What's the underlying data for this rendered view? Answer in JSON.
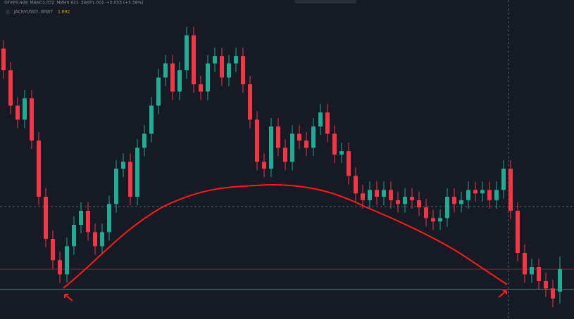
{
  "chart_data": {
    "type": "candlestick",
    "title": "JACKVUSDT, BYBIT",
    "last_price_label": "1.002",
    "ohlc_text": [
      "ОТКР0.949",
      "МАКС1.032",
      "МИН0.921",
      "ЗАКР1.002",
      "+0.053 (+5.58%)"
    ],
    "ylim": [
      0.885,
      1.634
    ],
    "up_color": "#22ab94",
    "down_color": "#f23645",
    "support_level": 0.954,
    "open": [
      1.52,
      1.469,
      1.386,
      1.353,
      1.403,
      1.304,
      1.172,
      1.073,
      1.023,
      0.99,
      1.056,
      1.106,
      1.139,
      1.089,
      1.056,
      1.089,
      1.155,
      1.238,
      1.254,
      1.172,
      1.287,
      1.32,
      1.386,
      1.452,
      1.485,
      1.419,
      1.469,
      1.551,
      1.436,
      1.419,
      1.485,
      1.502,
      1.452,
      1.485,
      1.502,
      1.436,
      1.353,
      1.254,
      1.238,
      1.337,
      1.287,
      1.254,
      1.32,
      1.304,
      1.287,
      1.337,
      1.37,
      1.32,
      1.271,
      1.279,
      1.221,
      1.18,
      1.164,
      1.188,
      1.172,
      1.188,
      1.164,
      1.155,
      1.172,
      1.164,
      1.147,
      1.122,
      1.114,
      1.122,
      1.172,
      1.155,
      1.164,
      1.188,
      1.18,
      1.188,
      1.164,
      1.188,
      1.238,
      1.139,
      1.04,
      0.99,
      1.007,
      0.974,
      0.957,
      0.949
    ],
    "high": [
      1.54,
      1.489,
      1.406,
      1.423,
      1.423,
      1.324,
      1.192,
      1.093,
      1.043,
      1.076,
      1.126,
      1.159,
      1.159,
      1.109,
      1.109,
      1.175,
      1.258,
      1.274,
      1.274,
      1.307,
      1.34,
      1.406,
      1.472,
      1.505,
      1.505,
      1.489,
      1.571,
      1.571,
      1.456,
      1.505,
      1.522,
      1.522,
      1.505,
      1.522,
      1.522,
      1.456,
      1.373,
      1.274,
      1.357,
      1.357,
      1.307,
      1.34,
      1.34,
      1.324,
      1.357,
      1.39,
      1.39,
      1.34,
      1.299,
      1.299,
      1.241,
      1.2,
      1.208,
      1.208,
      1.208,
      1.208,
      1.184,
      1.192,
      1.192,
      1.184,
      1.167,
      1.142,
      1.142,
      1.192,
      1.192,
      1.184,
      1.208,
      1.208,
      1.208,
      1.208,
      1.208,
      1.258,
      1.258,
      1.159,
      1.06,
      1.027,
      1.027,
      0.994,
      0.977,
      1.032
    ],
    "low": [
      1.449,
      1.366,
      1.333,
      1.333,
      1.284,
      1.152,
      1.053,
      1.003,
      0.97,
      0.97,
      1.036,
      1.086,
      1.069,
      1.036,
      1.036,
      1.069,
      1.135,
      1.218,
      1.152,
      1.152,
      1.267,
      1.3,
      1.366,
      1.432,
      1.399,
      1.399,
      1.449,
      1.416,
      1.399,
      1.399,
      1.465,
      1.432,
      1.432,
      1.465,
      1.416,
      1.333,
      1.234,
      1.218,
      1.218,
      1.267,
      1.234,
      1.234,
      1.284,
      1.267,
      1.267,
      1.317,
      1.3,
      1.251,
      1.251,
      1.201,
      1.16,
      1.144,
      1.144,
      1.152,
      1.152,
      1.144,
      1.135,
      1.135,
      1.144,
      1.127,
      1.102,
      1.094,
      1.094,
      1.102,
      1.135,
      1.135,
      1.144,
      1.16,
      1.16,
      1.144,
      1.144,
      1.168,
      1.119,
      1.02,
      0.97,
      0.97,
      0.954,
      0.937,
      0.913,
      0.921
    ],
    "close": [
      1.469,
      1.386,
      1.353,
      1.403,
      1.304,
      1.172,
      1.073,
      1.023,
      0.99,
      1.056,
      1.106,
      1.139,
      1.089,
      1.056,
      1.089,
      1.155,
      1.238,
      1.254,
      1.172,
      1.287,
      1.32,
      1.386,
      1.452,
      1.485,
      1.419,
      1.469,
      1.551,
      1.436,
      1.419,
      1.485,
      1.502,
      1.452,
      1.485,
      1.502,
      1.436,
      1.353,
      1.254,
      1.238,
      1.337,
      1.287,
      1.254,
      1.32,
      1.304,
      1.287,
      1.337,
      1.37,
      1.32,
      1.271,
      1.279,
      1.221,
      1.18,
      1.164,
      1.188,
      1.172,
      1.188,
      1.164,
      1.155,
      1.172,
      1.164,
      1.147,
      1.122,
      1.114,
      1.122,
      1.172,
      1.155,
      1.164,
      1.188,
      1.18,
      1.188,
      1.164,
      1.188,
      1.238,
      1.139,
      1.04,
      0.99,
      1.007,
      0.974,
      0.957,
      0.933,
      1.002
    ]
  }
}
